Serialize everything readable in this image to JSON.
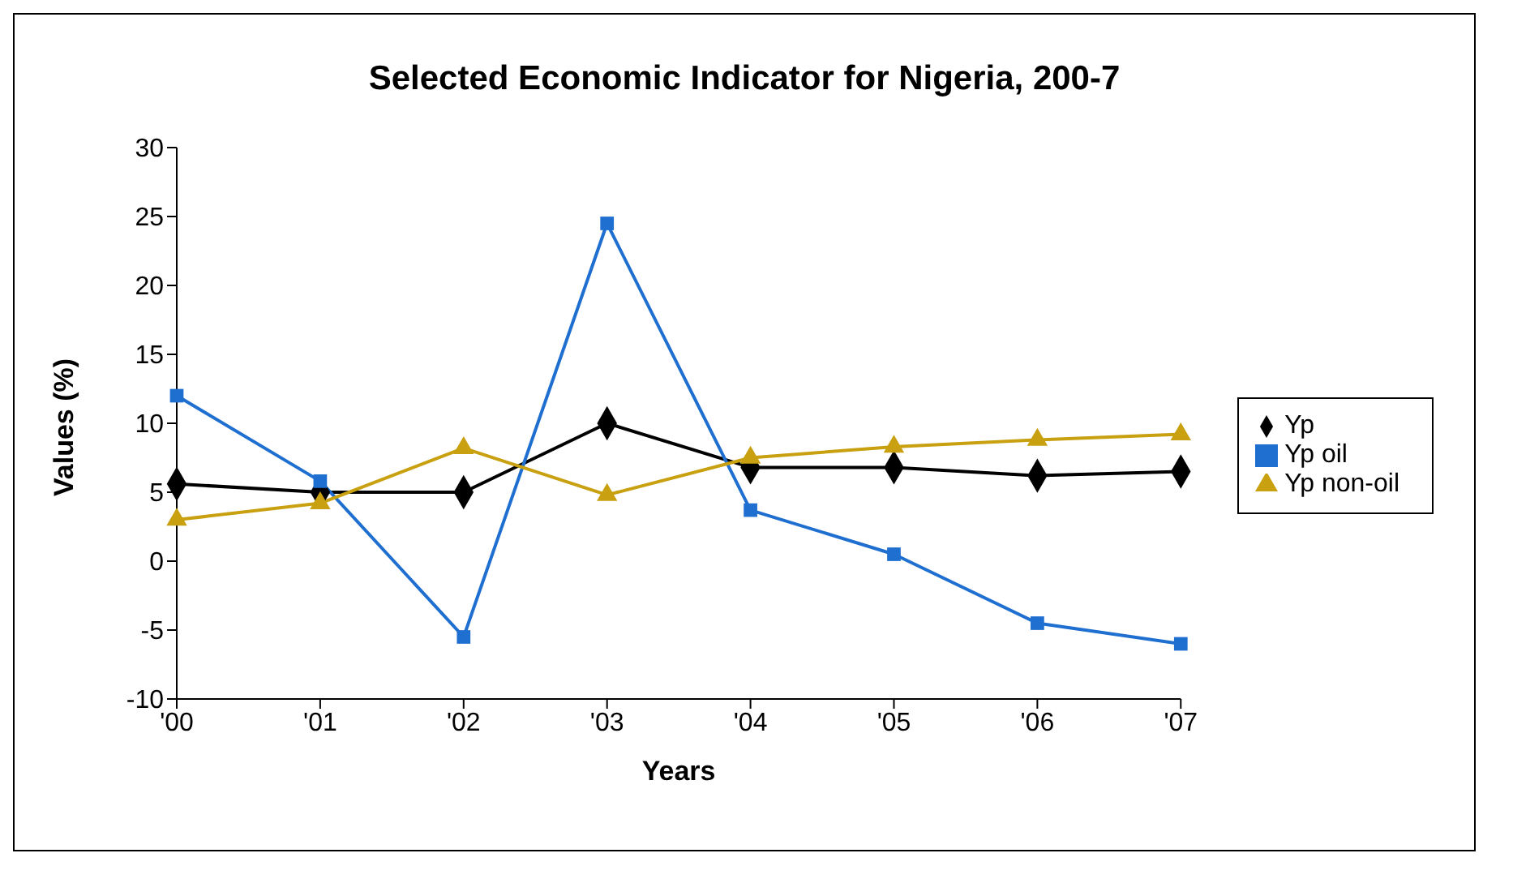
{
  "chart_data": {
    "type": "line",
    "title": "Selected Economic Indicator for Nigeria, 200-7",
    "xlabel": "Years",
    "ylabel": "Values (%)",
    "categories": [
      "'00",
      "'01",
      "'02",
      "'03",
      "'04",
      "'05",
      "'06",
      "'07"
    ],
    "series": [
      {
        "name": "Yp",
        "color": "#000000",
        "marker": "diamond",
        "values": [
          5.6,
          5,
          5,
          10,
          6.8,
          6.8,
          6.2,
          6.5
        ]
      },
      {
        "name": "Yp oil",
        "color": "#1f6fd0",
        "marker": "square",
        "values": [
          12,
          5.8,
          -5.5,
          24.5,
          3.7,
          0.5,
          -4.5,
          -6
        ]
      },
      {
        "name": "Yp non-oil",
        "color": "#c8a010",
        "marker": "triangle",
        "values": [
          3,
          4.2,
          8.2,
          4.8,
          7.5,
          8.3,
          8.8,
          9.2
        ]
      }
    ],
    "ylim": [
      -10,
      30
    ],
    "yticks": [
      -10,
      -5,
      0,
      5,
      10,
      15,
      20,
      25,
      30
    ],
    "grid": false,
    "legend": "right"
  }
}
